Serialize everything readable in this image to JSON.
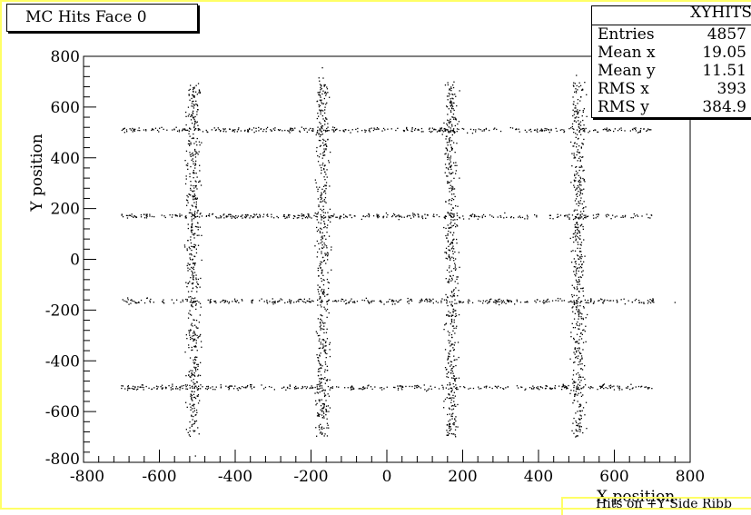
{
  "title_box": "MC Hits Face 0",
  "stats": {
    "title": "XYHITS",
    "rows": [
      {
        "name": "Entries",
        "value": "4857"
      },
      {
        "name": "Mean x",
        "value": "19.05"
      },
      {
        "name": "Mean y",
        "value": "11.51"
      },
      {
        "name": "RMS x",
        "value": "393"
      },
      {
        "name": "RMS y",
        "value": "384.9"
      }
    ]
  },
  "legend_strip": "Hits on +Y Side Ribb",
  "chart_data": {
    "type": "scatter",
    "title": "MC Hits Face 0",
    "xlabel": "X position",
    "ylabel": "Y position",
    "xlim": [
      -800,
      800
    ],
    "ylim": [
      -800,
      800
    ],
    "xticks": [
      -800,
      -600,
      -400,
      -200,
      0,
      200,
      400,
      600,
      800
    ],
    "yticks": [
      -800,
      -600,
      -400,
      -200,
      0,
      200,
      400,
      600,
      800
    ],
    "grid": false,
    "color": "#000000",
    "vertical_strips": [
      {
        "x": -510,
        "y_range": [
          -700,
          700
        ]
      },
      {
        "x": -170,
        "y_range": [
          -700,
          720
        ]
      },
      {
        "x": 170,
        "y_range": [
          -700,
          700
        ]
      },
      {
        "x": 505,
        "y_range": [
          -700,
          700
        ]
      }
    ],
    "horizontal_strips": [
      {
        "y": 510,
        "x_range": [
          -700,
          700
        ]
      },
      {
        "y": 170,
        "x_range": [
          -700,
          700
        ]
      },
      {
        "y": -165,
        "x_range": [
          -700,
          720
        ]
      },
      {
        "y": -505,
        "x_range": [
          -700,
          700
        ]
      }
    ],
    "stray_points": [
      [
        -170,
        755
      ],
      [
        -505,
        -775
      ],
      [
        760,
        -170
      ],
      [
        500,
        725
      ]
    ],
    "entries": 4857
  }
}
